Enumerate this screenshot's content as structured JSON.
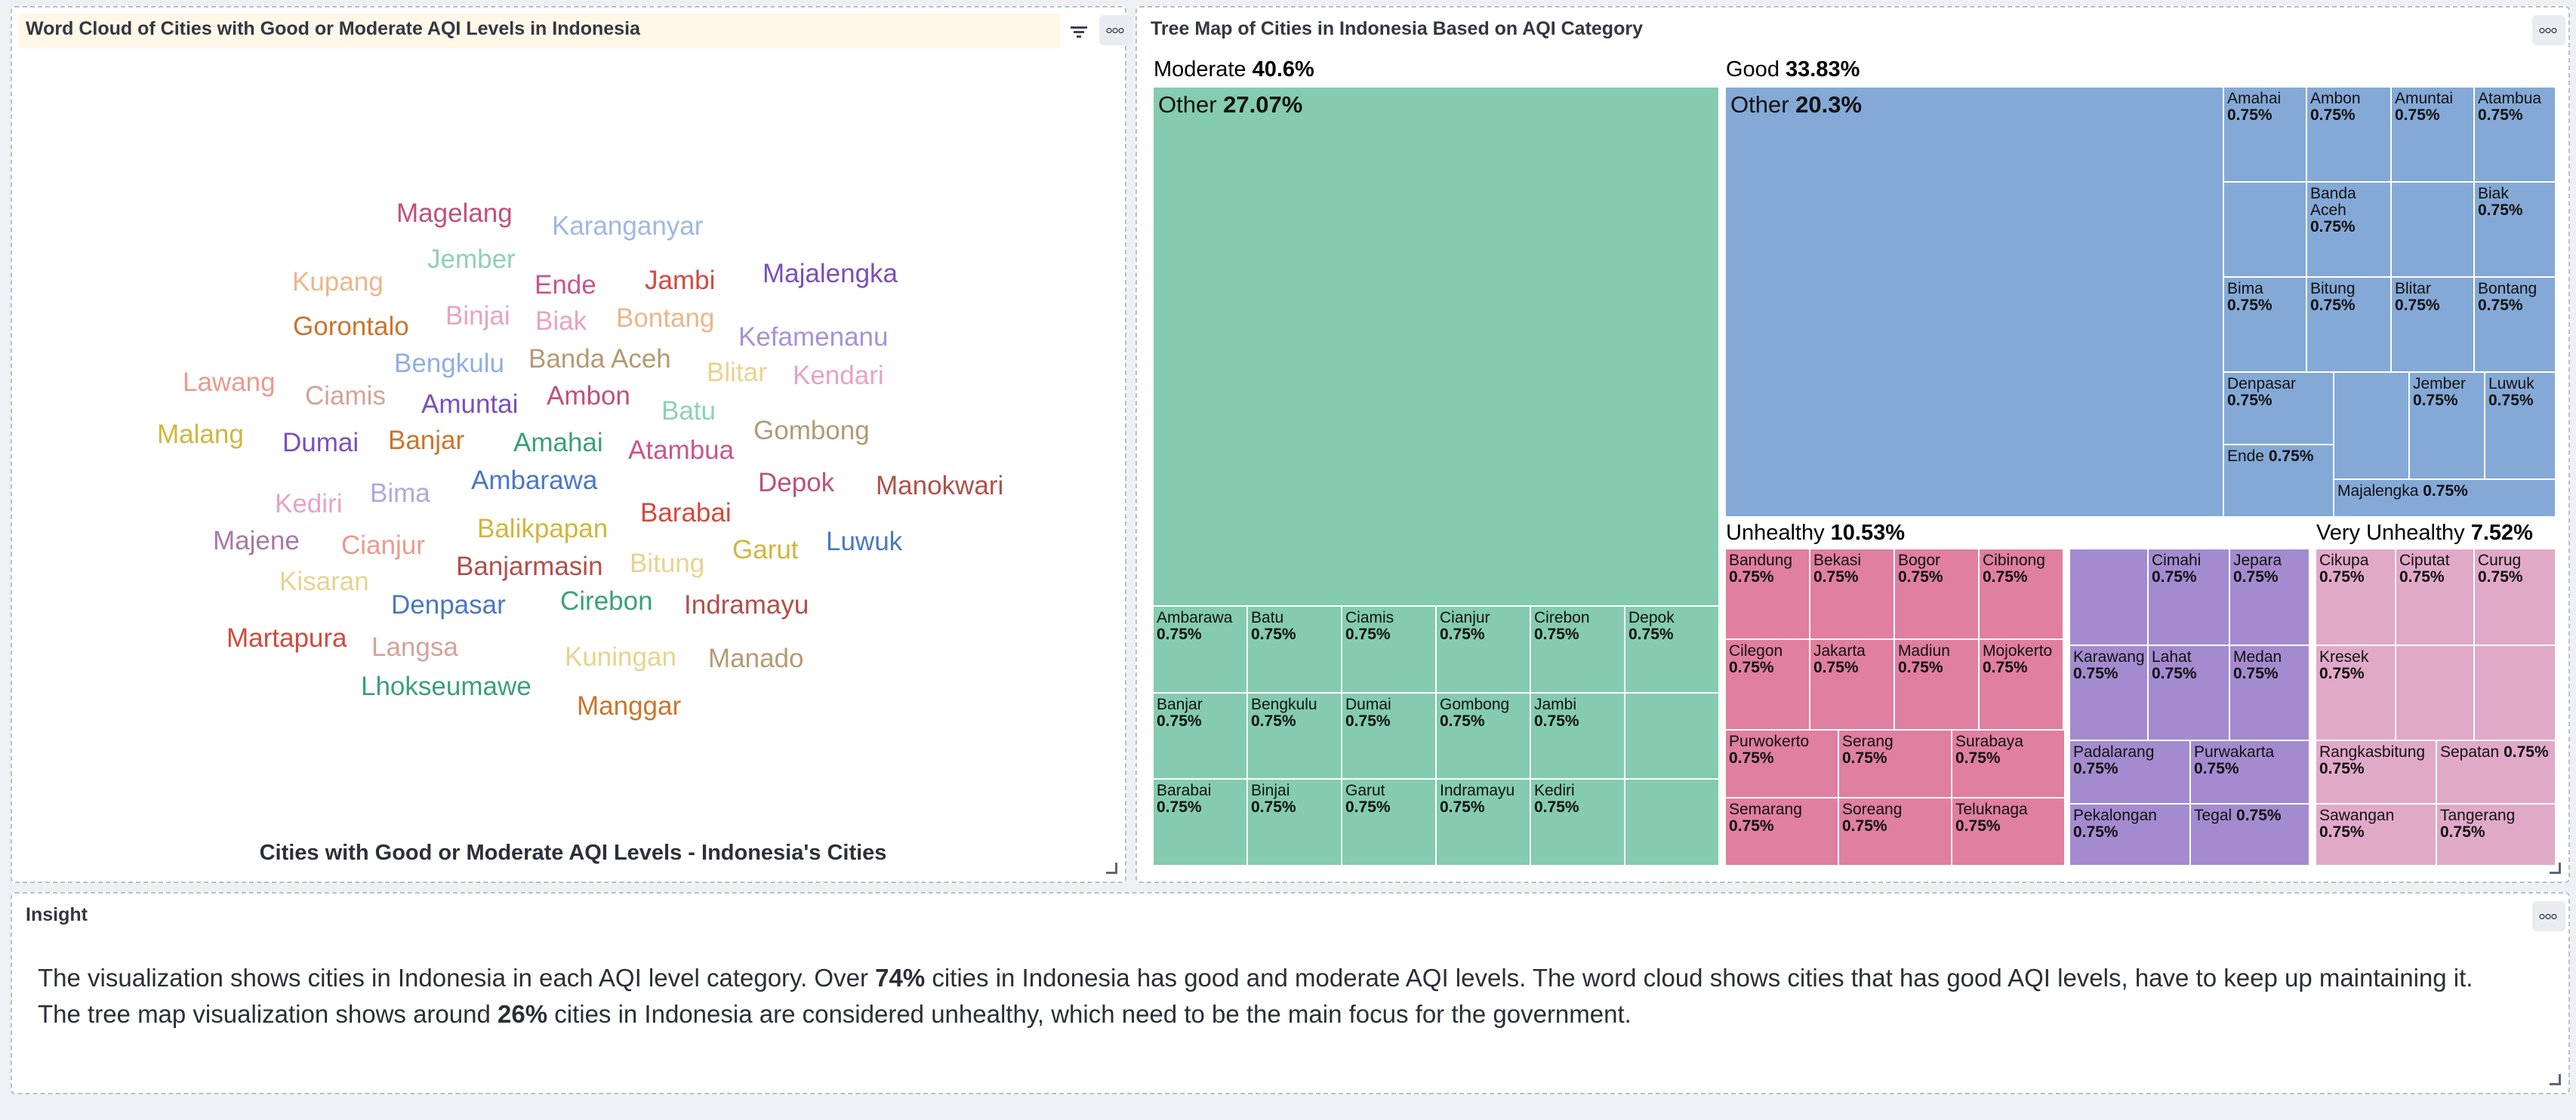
{
  "colors": {
    "moderate": "#84cbb2",
    "good": "#84a9d6",
    "unhealthy": "#e07f9f",
    "very_unhealthy": "#e1a9c8",
    "purple": "#a48bd0"
  },
  "wordcloud": {
    "title": "Word Cloud of Cities with Good or Moderate AQI Levels in Indonesia",
    "caption": "Cities with Good or Moderate AQI Levels - Indonesia's Cities",
    "filter_icon": "filter-icon",
    "menu_icon": "more-horizontal-icon",
    "words": [
      {
        "text": "Magelang",
        "color": "#c0507a"
      },
      {
        "text": "Karanganyar",
        "color": "#9fb8e0"
      },
      {
        "text": "Jember",
        "color": "#8fd0b6"
      },
      {
        "text": "Kupang",
        "color": "#ecb68a"
      },
      {
        "text": "Ende",
        "color": "#c9558c"
      },
      {
        "text": "Jambi",
        "color": "#d24a3c"
      },
      {
        "text": "Majalengka",
        "color": "#7b4fb8"
      },
      {
        "text": "Gorontalo",
        "color": "#c9752c"
      },
      {
        "text": "Binjai",
        "color": "#e8a3c3"
      },
      {
        "text": "Biak",
        "color": "#e8a3c3"
      },
      {
        "text": "Bontang",
        "color": "#ecb68a"
      },
      {
        "text": "Kefamenanu",
        "color": "#a891d6"
      },
      {
        "text": "Bengkulu",
        "color": "#8fb0e0"
      },
      {
        "text": "Banda Aceh",
        "color": "#b59a72"
      },
      {
        "text": "Blitar",
        "color": "#e8d38e"
      },
      {
        "text": "Kendari",
        "color": "#e8a3c3"
      },
      {
        "text": "Lawang",
        "color": "#ec9a8e"
      },
      {
        "text": "Ciamis",
        "color": "#d4a39a"
      },
      {
        "text": "Amuntai",
        "color": "#7b4fb8"
      },
      {
        "text": "Ambon",
        "color": "#c0507a"
      },
      {
        "text": "Batu",
        "color": "#8fd0b6"
      },
      {
        "text": "Malang",
        "color": "#d4b43c"
      },
      {
        "text": "Dumai",
        "color": "#7b4fb8"
      },
      {
        "text": "Banjar",
        "color": "#c9752c"
      },
      {
        "text": "Amahai",
        "color": "#3aa07a"
      },
      {
        "text": "Atambua",
        "color": "#c9558c"
      },
      {
        "text": "Gombong",
        "color": "#b59a72"
      },
      {
        "text": "Ambarawa",
        "color": "#4a78c0"
      },
      {
        "text": "Kediri",
        "color": "#e8a3c3"
      },
      {
        "text": "Bima",
        "color": "#b0a8e0"
      },
      {
        "text": "Depok",
        "color": "#c0507a"
      },
      {
        "text": "Manokwari",
        "color": "#b0504a"
      },
      {
        "text": "Barabai",
        "color": "#d24a3c"
      },
      {
        "text": "Majene",
        "color": "#a878a8"
      },
      {
        "text": "Cianjur",
        "color": "#ec9a8e"
      },
      {
        "text": "Balikpapan",
        "color": "#d4b43c"
      },
      {
        "text": "Garut",
        "color": "#d4b43c"
      },
      {
        "text": "Luwuk",
        "color": "#4a78c0"
      },
      {
        "text": "Banjarmasin",
        "color": "#b0504a"
      },
      {
        "text": "Bitung",
        "color": "#e8d38e"
      },
      {
        "text": "Kisaran",
        "color": "#e8d38e"
      },
      {
        "text": "Denpasar",
        "color": "#4a78c0"
      },
      {
        "text": "Cirebon",
        "color": "#3aa07a"
      },
      {
        "text": "Indramayu",
        "color": "#b0504a"
      },
      {
        "text": "Martapura",
        "color": "#d24a3c"
      },
      {
        "text": "Langsa",
        "color": "#d4a39a"
      },
      {
        "text": "Kuningan",
        "color": "#e8d38e"
      },
      {
        "text": "Manado",
        "color": "#b59a72"
      },
      {
        "text": "Lhokseumawe",
        "color": "#3aa07a"
      },
      {
        "text": "Manggar",
        "color": "#c9752c"
      }
    ]
  },
  "treemap": {
    "title": "Tree Map of Cities in Indonesia Based on AQI Category",
    "menu_icon": "more-horizontal-icon",
    "categories": {
      "moderate": {
        "name": "Moderate",
        "pct": "40.6%"
      },
      "good": {
        "name": "Good",
        "pct": "33.83%"
      },
      "unhealthy": {
        "name": "Unhealthy",
        "pct": "10.53%"
      },
      "very_unhealthy": {
        "name": "Very Unhealthy",
        "pct": "7.52%"
      }
    },
    "other_moderate": {
      "name": "Other",
      "pct": "27.07%"
    },
    "other_good": {
      "name": "Other",
      "pct": "20.3%"
    },
    "tiles": {
      "moderate": [
        [
          "Ambarawa",
          "0.75%"
        ],
        [
          "Batu",
          "0.75%"
        ],
        [
          "Ciamis",
          "0.75%"
        ],
        [
          "Cianjur",
          "0.75%"
        ],
        [
          "Cirebon",
          "0.75%"
        ],
        [
          "Depok",
          "0.75%"
        ],
        [
          "Banjar",
          "0.75%"
        ],
        [
          "Bengkulu",
          "0.75%"
        ],
        [
          "Dumai",
          "0.75%"
        ],
        [
          "Gombong",
          "0.75%"
        ],
        [
          "Jambi",
          "0.75%"
        ],
        [
          "",
          ""
        ],
        [
          "Barabai",
          "0.75%"
        ],
        [
          "Binjai",
          "0.75%"
        ],
        [
          "Garut",
          "0.75%"
        ],
        [
          "Indramayu",
          "0.75%"
        ],
        [
          "Kediri",
          "0.75%"
        ],
        [
          "",
          ""
        ]
      ],
      "good": [
        [
          "Amahai",
          "0.75%"
        ],
        [
          "Ambon",
          "0.75%"
        ],
        [
          "Amuntai",
          "0.75%"
        ],
        [
          "Atambua",
          "0.75%"
        ],
        [
          "",
          ""
        ],
        [
          "Banda Aceh",
          "0.75%"
        ],
        [
          "",
          ""
        ],
        [
          "Biak",
          "0.75%"
        ],
        [
          "Bima",
          "0.75%"
        ],
        [
          "Bitung",
          "0.75%"
        ],
        [
          "Blitar",
          "0.75%"
        ],
        [
          "Bontang",
          "0.75%"
        ],
        [
          "Denpasar",
          "0.75%"
        ],
        [
          "",
          ""
        ],
        [
          "Jember",
          "0.75%"
        ],
        [
          "Luwuk",
          "0.75%"
        ],
        [
          "Ende",
          "0.75%"
        ],
        [
          "Majalengka",
          "0.75%"
        ]
      ],
      "unhealthy": [
        [
          "Bandung",
          "0.75%"
        ],
        [
          "Bekasi",
          "0.75%"
        ],
        [
          "Bogor",
          "0.75%"
        ],
        [
          "Cibinong",
          "0.75%"
        ],
        [
          "Cilegon",
          "0.75%"
        ],
        [
          "Jakarta",
          "0.75%"
        ],
        [
          "Madiun",
          "0.75%"
        ],
        [
          "Mojokerto",
          "0.75%"
        ],
        [
          "Purwokerto",
          "0.75%"
        ],
        [
          "Serang",
          "0.75%"
        ],
        [
          "Surabaya",
          "0.75%"
        ],
        [
          "Semarang",
          "0.75%"
        ],
        [
          "Soreang",
          "0.75%"
        ],
        [
          "Teluknaga",
          "0.75%"
        ]
      ],
      "purple": [
        [
          "",
          ""
        ],
        [
          "Cimahi",
          "0.75%"
        ],
        [
          "Jepara",
          "0.75%"
        ],
        [
          "Karawang",
          "0.75%"
        ],
        [
          "Lahat",
          "0.75%"
        ],
        [
          "Medan",
          "0.75%"
        ],
        [
          "Padalarang",
          "0.75%"
        ],
        [
          "Purwakarta",
          "0.75%"
        ],
        [
          "Pekalongan",
          "0.75%"
        ],
        [
          "Tegal",
          "0.75%"
        ]
      ],
      "very_unhealthy": [
        [
          "Cikupa",
          "0.75%"
        ],
        [
          "Ciputat",
          "0.75%"
        ],
        [
          "Curug",
          "0.75%"
        ],
        [
          "Kresek",
          "0.75%"
        ],
        [
          "",
          ""
        ],
        [
          "",
          ""
        ],
        [
          "Rangkasbitung",
          "0.75%"
        ],
        [
          "Sepatan",
          "0.75%"
        ],
        [
          "Sawangan",
          "0.75%"
        ],
        [
          "Tangerang",
          "0.75%"
        ]
      ]
    }
  },
  "insight": {
    "title": "Insight",
    "menu_icon": "more-horizontal-icon",
    "p1_a": "The visualization shows cities in Indonesia in each AQI level category. Over ",
    "p1_b": "74%",
    "p1_c": " cities in Indonesia has good and moderate AQI levels. The word cloud shows cities that has good AQI levels, have to keep up maintaining it.",
    "p2_a": "The tree map visualization shows around ",
    "p2_b": "26%",
    "p2_c": " cities in Indonesia are considered unhealthy, which need to be the main focus for the government."
  }
}
